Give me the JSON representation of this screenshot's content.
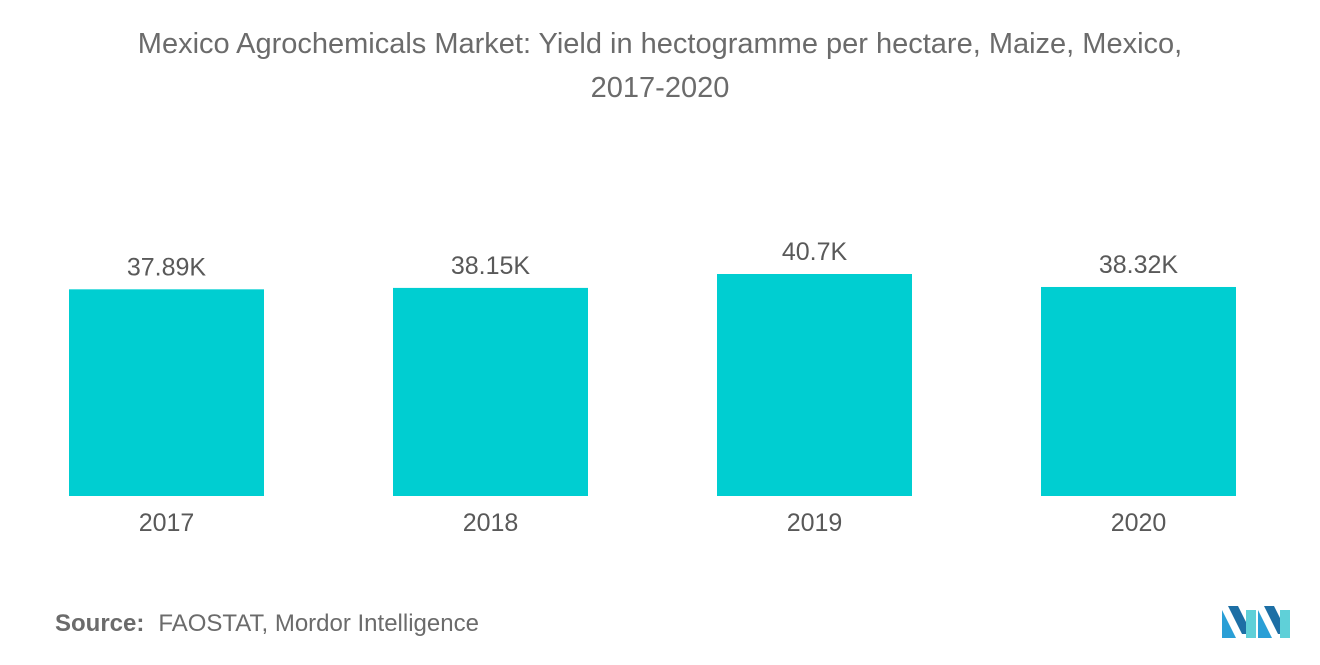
{
  "title_line1": "Mexico Agrochemicals Market: Yield in hectogramme per hectare, Maize, Mexico,",
  "title_line2": "2017-2020",
  "source": {
    "label": "Source:",
    "text": "FAOSTAT, Mordor Intelligence"
  },
  "colors": {
    "bar": "#00CED1",
    "text": "#595959"
  },
  "chart_data": {
    "type": "bar",
    "categories": [
      "2017",
      "2018",
      "2019",
      "2020"
    ],
    "values": [
      37890,
      38150,
      40700,
      38320
    ],
    "data_labels": [
      "37.89K",
      "38.15K",
      "40.7K",
      "38.32K"
    ],
    "title": "Mexico Agrochemicals Market: Yield in hectogramme per hectare, Maize, Mexico, 2017-2020",
    "xlabel": "",
    "ylabel": "",
    "ylim": [
      0,
      40700
    ],
    "grid": false,
    "legend": "none"
  }
}
